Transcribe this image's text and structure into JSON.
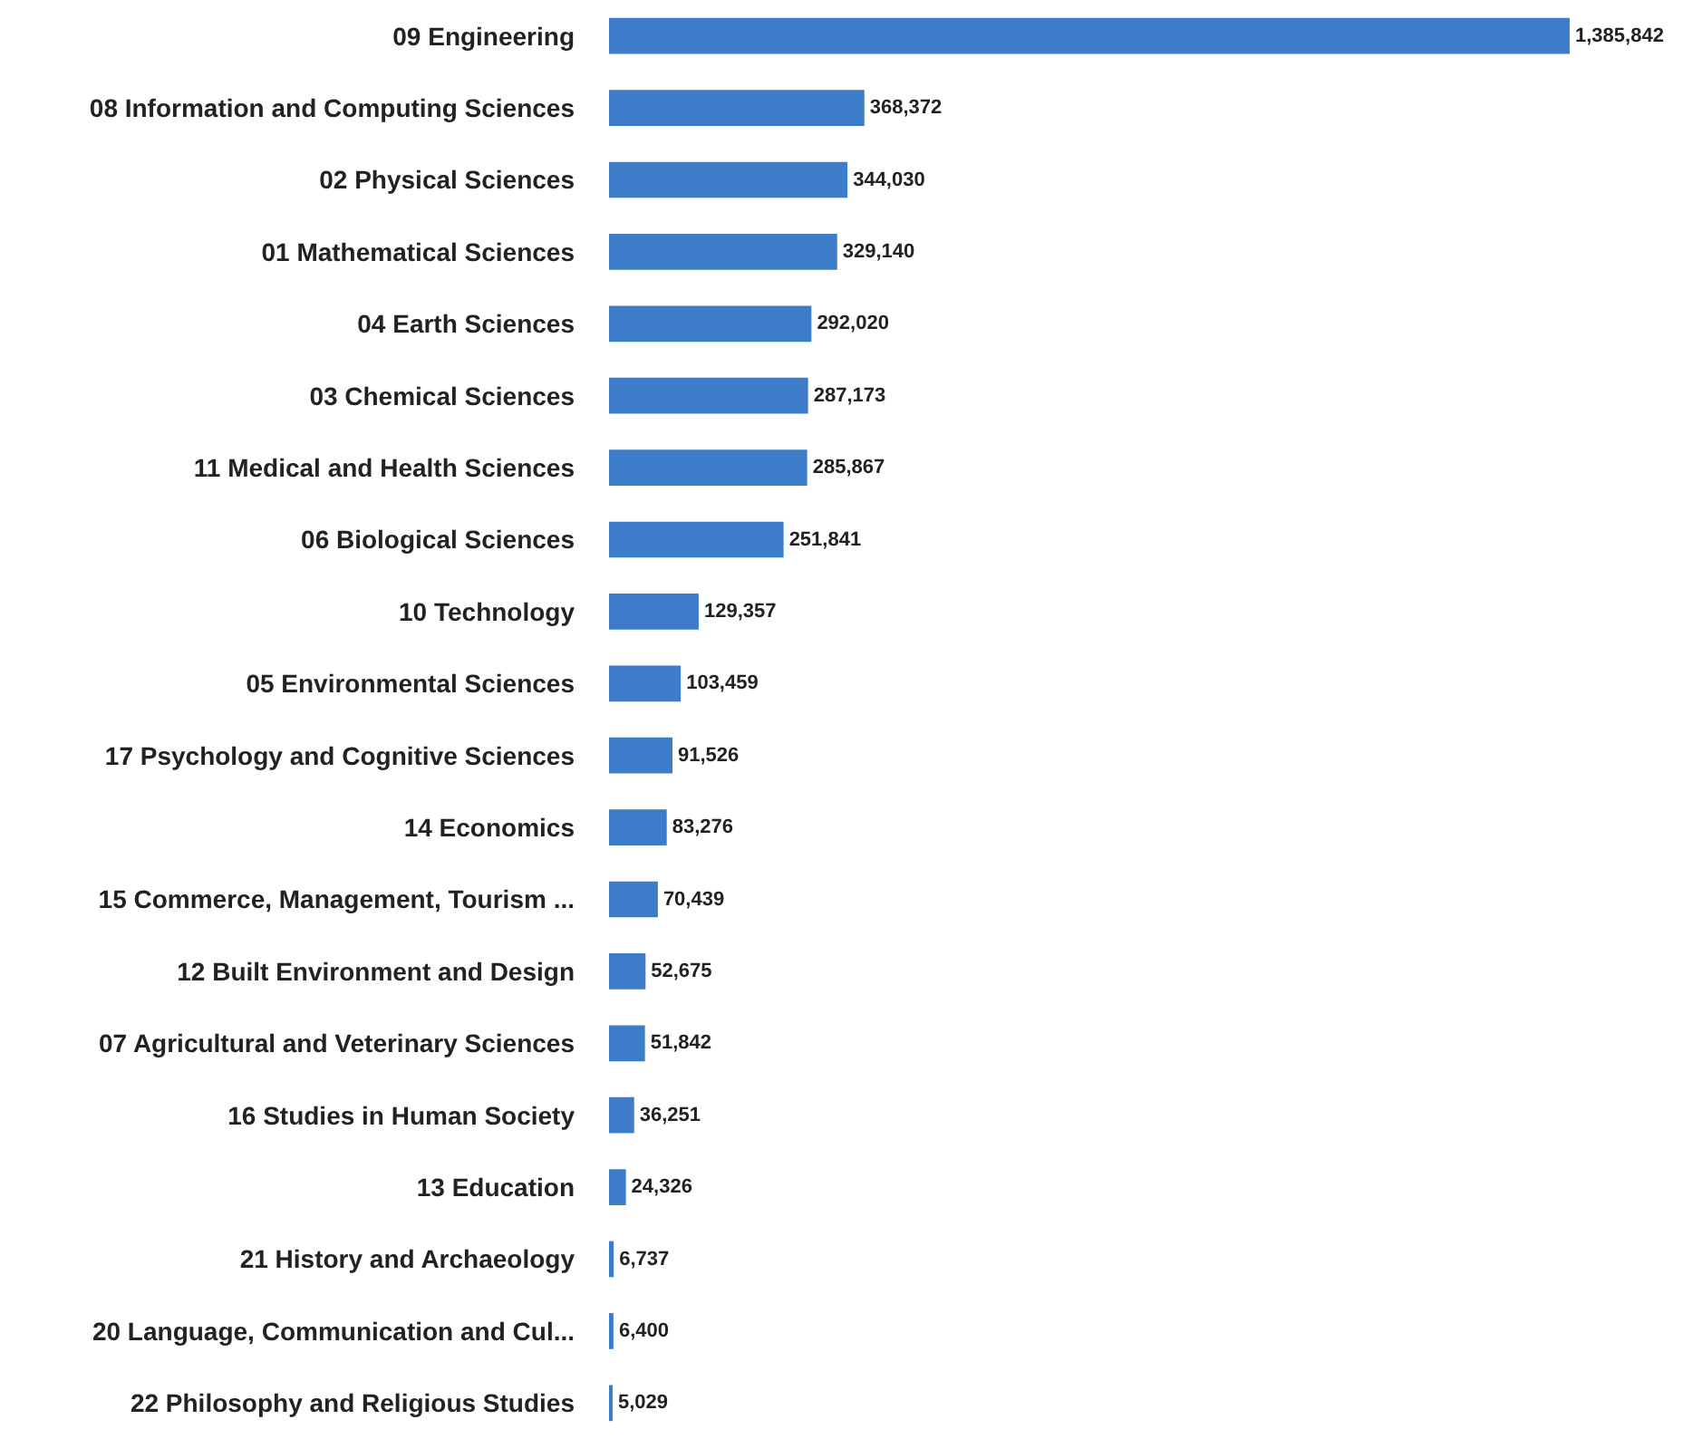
{
  "chart_data": {
    "type": "bar",
    "orientation": "horizontal",
    "value_labels": [
      "1,385,842",
      "368,372",
      "344,030",
      "329,140",
      "292,020",
      "287,173",
      "285,867",
      "251,841",
      "129,357",
      "103,459",
      "91,526",
      "83,276",
      "70,439",
      "52,675",
      "51,842",
      "36,251",
      "24,326",
      "6,737",
      "6,400",
      "5,029"
    ],
    "grid": false,
    "legend": false,
    "categories": [
      "09 Engineering",
      "08 Information and Computing Sciences",
      "02 Physical Sciences",
      "01 Mathematical Sciences",
      "04 Earth Sciences",
      "03 Chemical Sciences",
      "11 Medical and Health Sciences",
      "06 Biological Sciences",
      "10 Technology",
      "05 Environmental Sciences",
      "17 Psychology and Cognitive Sciences",
      "14 Economics",
      "15 Commerce, Management, Tourism ...",
      "12 Built Environment and Design",
      "07 Agricultural and Veterinary Sciences",
      "16 Studies in Human Society",
      "13 Education",
      "21 History and Archaeology",
      "20 Language, Communication and Cul...",
      "22 Philosophy and Religious Studies"
    ],
    "values": [
      1385842,
      368372,
      344030,
      329140,
      292020,
      287173,
      285867,
      251841,
      129357,
      103459,
      91526,
      83276,
      70439,
      52675,
      51842,
      36251,
      24326,
      6737,
      6400,
      5029
    ],
    "color": "#3d7cc9"
  }
}
